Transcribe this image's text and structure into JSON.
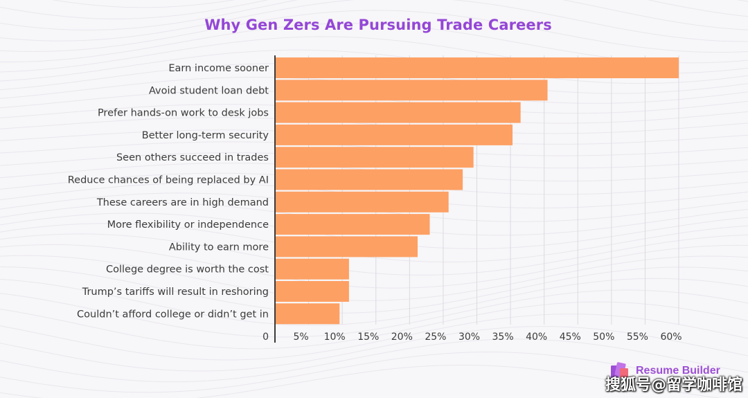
{
  "chart_data": {
    "type": "bar",
    "orientation": "horizontal",
    "title": "Why Gen Zers Are Pursuing Trade Careers",
    "categories": [
      "Earn income sooner",
      "Avoid student loan debt",
      "Prefer hands-on work to desk jobs",
      "Better long-term security",
      "Seen others succeed in trades",
      "Reduce chances of being replaced by AI",
      "These careers are in high demand",
      "More flexibility or independence",
      "Ability to earn more",
      "College degree is worth the cost",
      "Trump’s tariffs will result in reshoring",
      "Couldn’t afford college or didn’t get in"
    ],
    "values": [
      60,
      40.5,
      36.5,
      35.3,
      29.5,
      27.9,
      25.8,
      23,
      21.2,
      11,
      11,
      9.6
    ],
    "xlabel": "",
    "ylabel": "",
    "xlim": [
      0,
      60
    ],
    "x_ticks": [
      "0",
      "5%",
      "10%",
      "15%",
      "20%",
      "25%",
      "30%",
      "35%",
      "40%",
      "45%",
      "50%",
      "55%",
      "60%"
    ],
    "x_tick_values": [
      0,
      5,
      10,
      15,
      20,
      25,
      30,
      35,
      40,
      45,
      50,
      55,
      60
    ],
    "grid": "vertical",
    "legend": "none",
    "bar_color": "#fda064",
    "title_color": "#9447d6"
  },
  "brand": {
    "name": "Resume Builder",
    "logo_icon": "resume-builder-logo-icon",
    "color": "#9c4fd6"
  },
  "watermark": {
    "text": "搜狐号@留学咖啡馆"
  }
}
